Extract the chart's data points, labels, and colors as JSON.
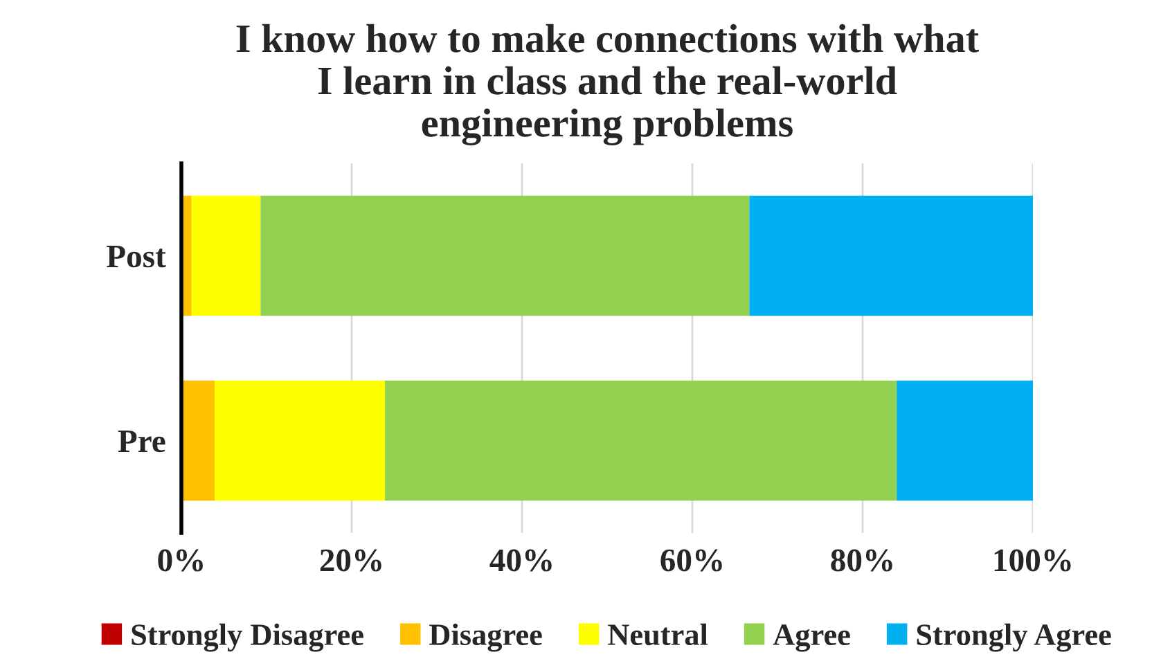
{
  "chart_data": {
    "type": "bar",
    "orientation": "horizontal",
    "stacked": true,
    "title": "I know how to make connections with what\nI learn in class and the real-world\nengineering problems",
    "categories": [
      "Post",
      "Pre"
    ],
    "series": [
      {
        "name": "Strongly Disagree",
        "color": "#c00000",
        "values": [
          0,
          0
        ]
      },
      {
        "name": "Disagree",
        "color": "#ffc000",
        "values": [
          1.2,
          3.9
        ]
      },
      {
        "name": "Neutral",
        "color": "#ffff00",
        "values": [
          8.1,
          20.0
        ]
      },
      {
        "name": "Agree",
        "color": "#92d050",
        "values": [
          57.4,
          60.1
        ]
      },
      {
        "name": "Strongly Agree",
        "color": "#00b0f0",
        "values": [
          33.3,
          16.0
        ]
      }
    ],
    "xlim": [
      0,
      100
    ],
    "xticks": [
      {
        "value": 0,
        "label": "0%"
      },
      {
        "value": 20,
        "label": "20%"
      },
      {
        "value": 40,
        "label": "40%"
      },
      {
        "value": 60,
        "label": "60%"
      },
      {
        "value": 80,
        "label": "80%"
      },
      {
        "value": 100,
        "label": "100%"
      }
    ],
    "grid": "x",
    "legend": "bottom"
  }
}
